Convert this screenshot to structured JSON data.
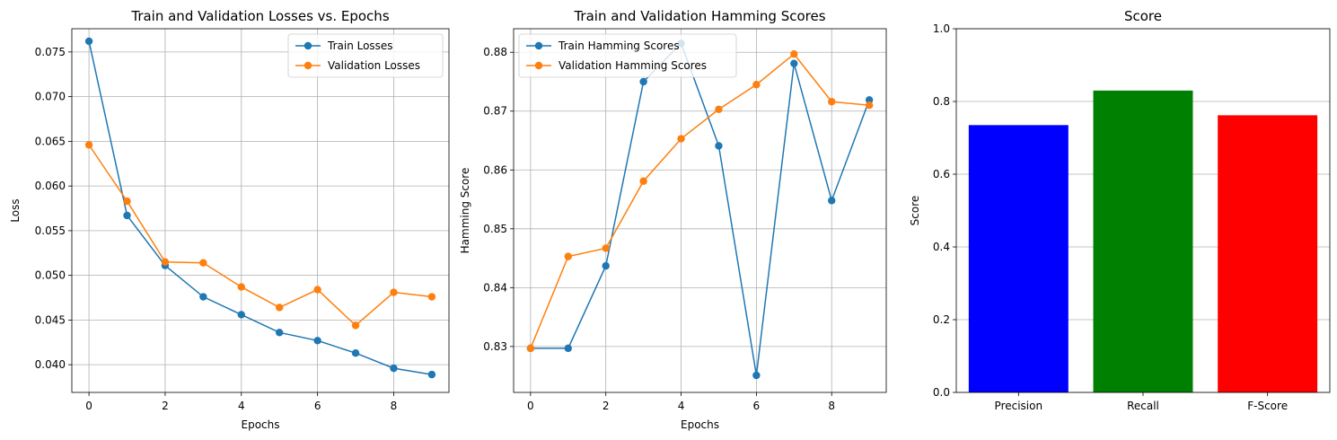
{
  "chart_data": [
    {
      "type": "line",
      "title": "Train and Validation Losses vs. Epochs",
      "xlabel": "Epochs",
      "ylabel": "Loss",
      "xlim": [
        -0.45,
        9.45
      ],
      "ylim": [
        0.0369,
        0.0776
      ],
      "xticks": [
        0,
        2,
        4,
        6,
        8
      ],
      "xtick_labels": [
        "0",
        "2",
        "4",
        "6",
        "8"
      ],
      "yticks": [
        0.04,
        0.045,
        0.05,
        0.055,
        0.06,
        0.065,
        0.07,
        0.075
      ],
      "ytick_labels": [
        "0.040",
        "0.045",
        "0.050",
        "0.055",
        "0.060",
        "0.065",
        "0.070",
        "0.075"
      ],
      "grid": true,
      "legend": "upper right",
      "x": [
        0,
        1,
        2,
        3,
        4,
        5,
        6,
        7,
        8,
        9
      ],
      "series": [
        {
          "name": "Train Losses",
          "color": "#1f77b4",
          "values": [
            0.0762,
            0.0567,
            0.0511,
            0.0476,
            0.0456,
            0.0436,
            0.0427,
            0.0413,
            0.0396,
            0.0389
          ]
        },
        {
          "name": "Validation Losses",
          "color": "#ff7f0e",
          "values": [
            0.0646,
            0.0583,
            0.0515,
            0.0514,
            0.0487,
            0.0464,
            0.0484,
            0.0444,
            0.0481,
            0.0476
          ]
        }
      ]
    },
    {
      "type": "line",
      "title": "Train and Validation Hamming Scores",
      "xlabel": "Epochs",
      "ylabel": "Hamming Score",
      "xlim": [
        -0.45,
        9.45
      ],
      "ylim": [
        0.8222,
        0.884
      ],
      "xticks": [
        0,
        2,
        4,
        6,
        8
      ],
      "xtick_labels": [
        "0",
        "2",
        "4",
        "6",
        "8"
      ],
      "yticks": [
        0.83,
        0.84,
        0.85,
        0.86,
        0.87,
        0.88
      ],
      "ytick_labels": [
        "0.83",
        "0.84",
        "0.85",
        "0.86",
        "0.87",
        "0.88"
      ],
      "grid": true,
      "legend": "upper left",
      "x": [
        0,
        1,
        2,
        3,
        4,
        5,
        6,
        7,
        8,
        9
      ],
      "series": [
        {
          "name": "Train Hamming Scores",
          "color": "#1f77b4",
          "values": [
            0.8297,
            0.8297,
            0.8437,
            0.875,
            0.8815,
            0.8641,
            0.8251,
            0.8781,
            0.8548,
            0.8719
          ]
        },
        {
          "name": "Validation Hamming Scores",
          "color": "#ff7f0e",
          "values": [
            0.8297,
            0.8453,
            0.8467,
            0.8581,
            0.8653,
            0.8703,
            0.8745,
            0.8797,
            0.8716,
            0.871
          ]
        }
      ]
    },
    {
      "type": "bar",
      "title": "Score",
      "xlabel": "",
      "ylabel": "Score",
      "ylim": [
        0,
        1.0
      ],
      "yticks": [
        0.0,
        0.2,
        0.4,
        0.6,
        0.8,
        1.0
      ],
      "ytick_labels": [
        "0.0",
        "0.2",
        "0.4",
        "0.6",
        "0.8",
        "1.0"
      ],
      "grid": "y",
      "categories": [
        "Precision",
        "Recall",
        "F-Score"
      ],
      "values": [
        0.735,
        0.83,
        0.762
      ],
      "colors": [
        "#0000ff",
        "#008000",
        "#ff0000"
      ]
    }
  ]
}
